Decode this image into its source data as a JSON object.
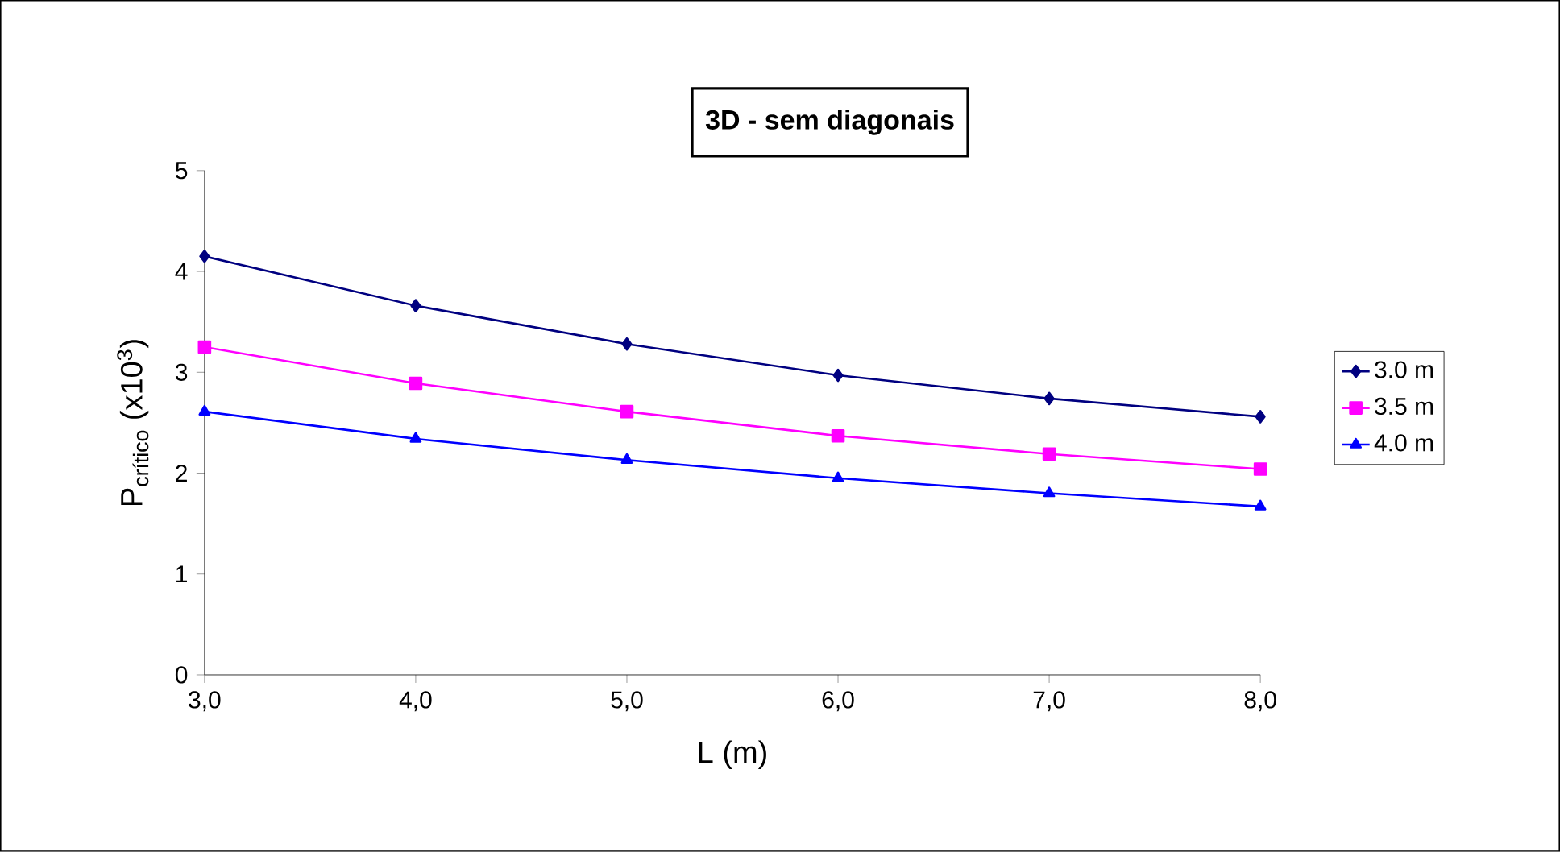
{
  "chart_data": {
    "type": "line",
    "title": "3D - sem diagonais",
    "xlabel": "L (m)",
    "ylabel": "P$_{crítico}$ (x10$^{3}$)",
    "x": [
      3,
      4,
      5,
      6,
      7,
      8
    ],
    "series": [
      {
        "name": "3.0 m",
        "color": "#000080",
        "marker": "diamond",
        "values": [
          4.15,
          3.66,
          3.28,
          2.97,
          2.74,
          2.56
        ]
      },
      {
        "name": "3.5 m",
        "color": "#ff00ff",
        "marker": "square",
        "values": [
          3.25,
          2.89,
          2.61,
          2.37,
          2.19,
          2.04
        ]
      },
      {
        "name": "4.0 m",
        "color": "#0000ff",
        "marker": "triangle",
        "values": [
          2.61,
          2.34,
          2.13,
          1.95,
          1.8,
          1.67
        ]
      }
    ],
    "xlim": [
      3,
      8
    ],
    "ylim": [
      0,
      5
    ],
    "xticks": [
      {
        "value": 3,
        "label": "3,0"
      },
      {
        "value": 4,
        "label": "4,0"
      },
      {
        "value": 5,
        "label": "5,0"
      },
      {
        "value": 6,
        "label": "6,0"
      },
      {
        "value": 7,
        "label": "7,0"
      },
      {
        "value": 8,
        "label": "8,0"
      }
    ],
    "yticks": [
      0,
      1,
      2,
      3,
      4,
      5
    ],
    "legend": "right",
    "grid": false,
    "line_style": "solid"
  }
}
